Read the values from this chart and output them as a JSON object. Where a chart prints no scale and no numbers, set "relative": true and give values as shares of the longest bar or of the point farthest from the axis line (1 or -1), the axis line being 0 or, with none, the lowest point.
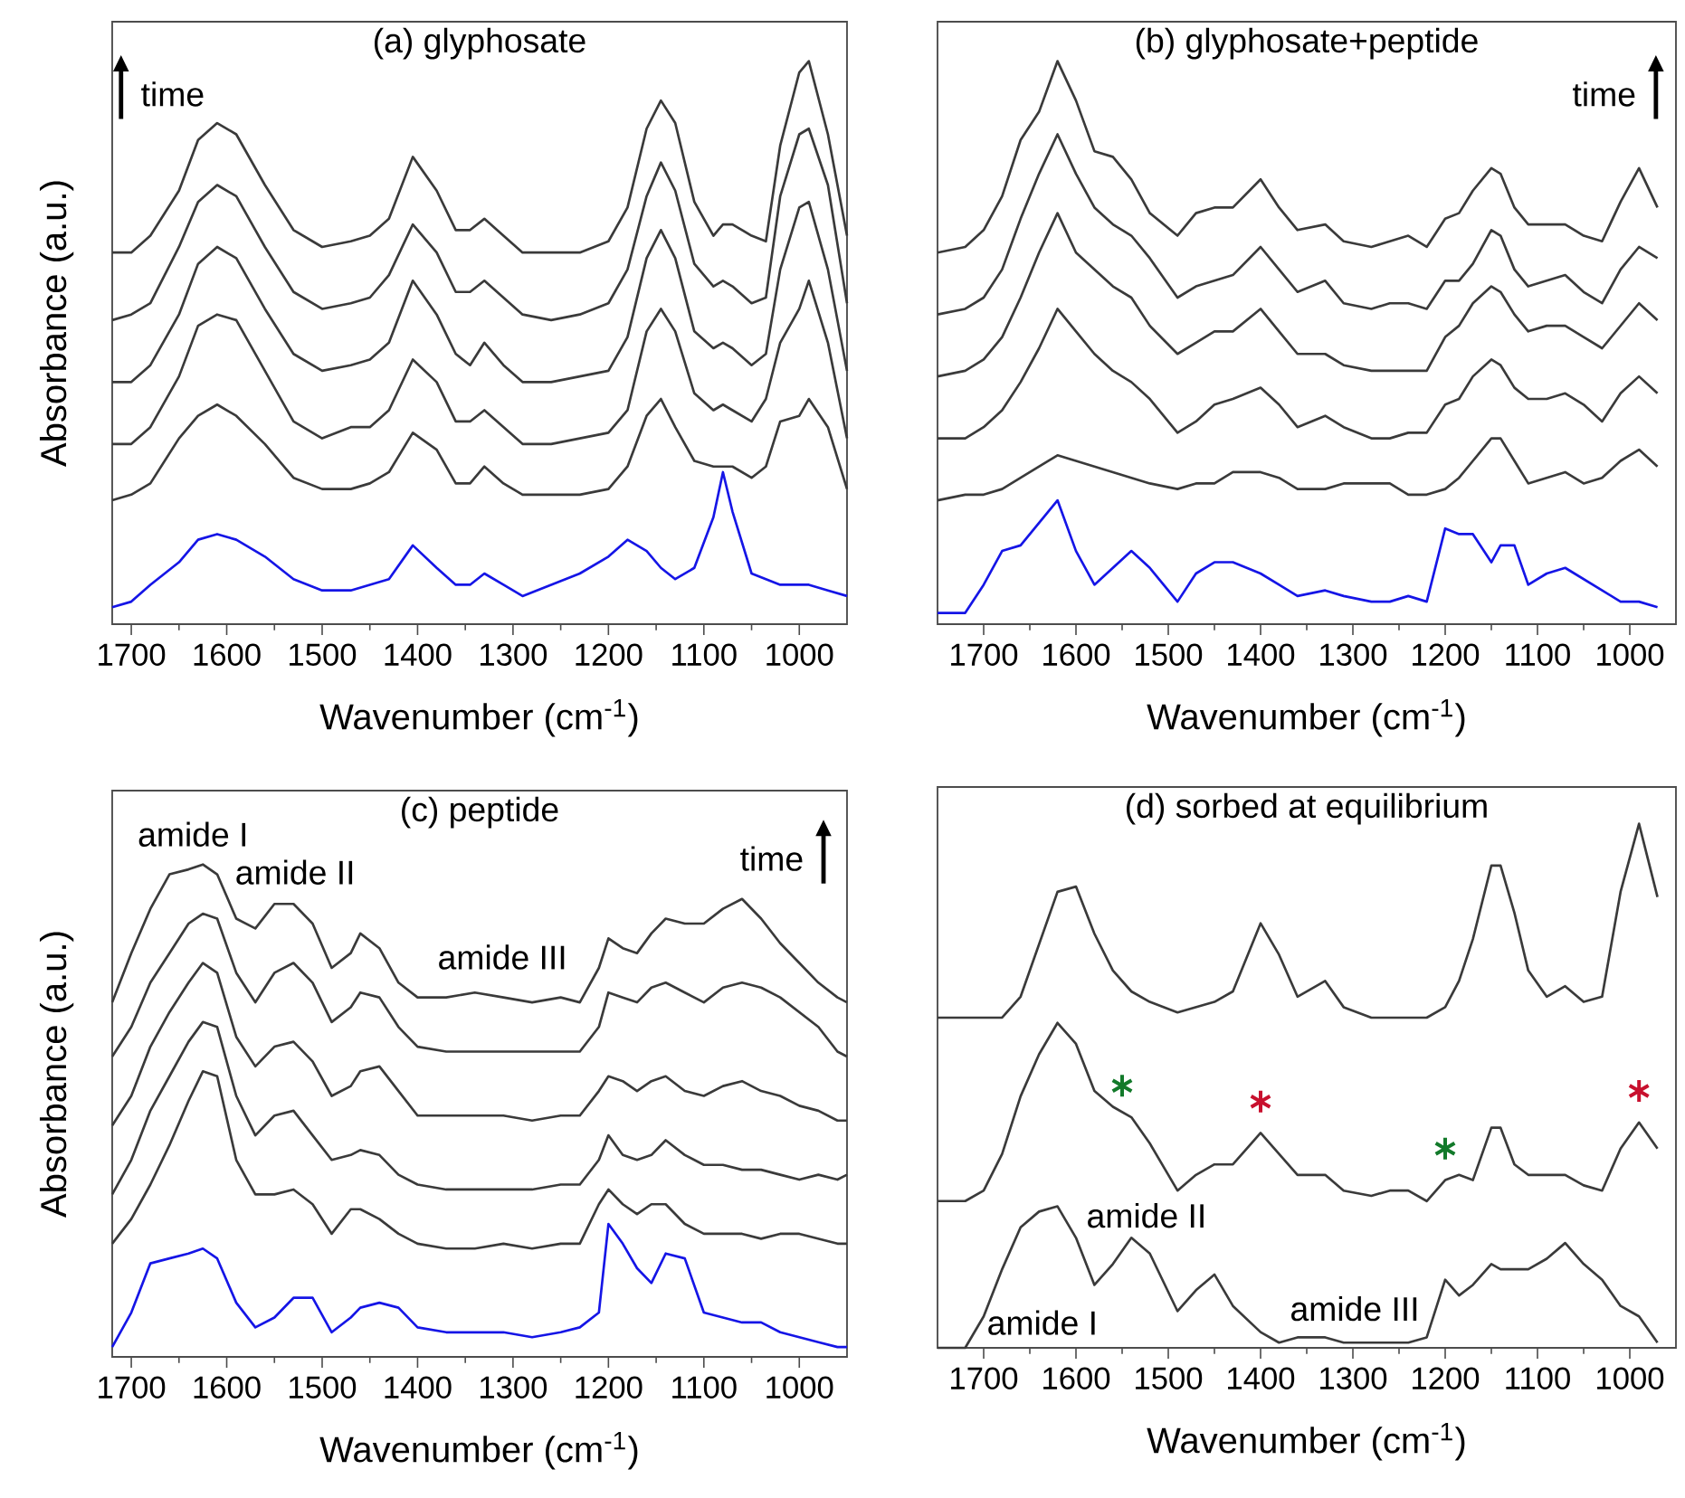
{
  "chart_data": [
    {
      "type": "line",
      "title": "(a) glyphosate",
      "xlabel": "Wavenumber (cm$^{-1}$)",
      "ylabel": "Absorbance (a.u.)",
      "relative": true,
      "xlim": [
        1720,
        950
      ],
      "xticks": [
        1700,
        {
          "value": 1650,
          "label": null
        },
        1600,
        {
          "value": 1550,
          "label": null
        },
        1500,
        {
          "value": 1450,
          "label": null
        },
        1400,
        {
          "value": 1350,
          "label": null
        },
        1300,
        {
          "value": 1250,
          "label": null
        },
        1200,
        {
          "value": 1150,
          "label": null
        },
        1100,
        {
          "value": 1050,
          "label": null
        },
        1000
      ],
      "x": [
        1720,
        1700,
        1680,
        1650,
        1630,
        1610,
        1590,
        1560,
        1530,
        1500,
        1470,
        1450,
        1430,
        1405,
        1380,
        1360,
        1345,
        1330,
        1310,
        1290,
        1260,
        1230,
        1200,
        1180,
        1160,
        1145,
        1130,
        1110,
        1090,
        1080,
        1070,
        1050,
        1035,
        1020,
        1000,
        990,
        970,
        950
      ],
      "series": [
        {
          "color": "#1515e6",
          "values": [
            0.03,
            0.04,
            0.07,
            0.11,
            0.15,
            0.16,
            0.15,
            0.12,
            0.08,
            0.06,
            0.06,
            0.07,
            0.08,
            0.14,
            0.1,
            0.07,
            0.07,
            0.09,
            0.07,
            0.05,
            0.07,
            0.09,
            0.12,
            0.15,
            0.13,
            0.1,
            0.08,
            0.1,
            0.19,
            0.27,
            0.2,
            0.09,
            0.08,
            0.07,
            0.07,
            0.07,
            0.06,
            0.05
          ]
        },
        {
          "color": "#3a3a3a",
          "values": [
            0.22,
            0.23,
            0.25,
            0.33,
            0.37,
            0.39,
            0.37,
            0.32,
            0.26,
            0.24,
            0.24,
            0.25,
            0.27,
            0.34,
            0.31,
            0.25,
            0.25,
            0.28,
            0.25,
            0.23,
            0.23,
            0.23,
            0.24,
            0.28,
            0.37,
            0.4,
            0.35,
            0.29,
            0.28,
            0.28,
            0.28,
            0.26,
            0.28,
            0.36,
            0.37,
            0.4,
            0.35,
            0.24
          ]
        },
        {
          "color": "#3a3a3a",
          "values": [
            0.32,
            0.32,
            0.35,
            0.44,
            0.53,
            0.55,
            0.54,
            0.45,
            0.36,
            0.33,
            0.35,
            0.35,
            0.38,
            0.47,
            0.43,
            0.36,
            0.36,
            0.38,
            0.35,
            0.32,
            0.32,
            0.33,
            0.34,
            0.38,
            0.52,
            0.56,
            0.52,
            0.41,
            0.38,
            0.39,
            0.38,
            0.36,
            0.4,
            0.5,
            0.56,
            0.61,
            0.5,
            0.33
          ]
        },
        {
          "color": "#3a3a3a",
          "values": [
            0.43,
            0.43,
            0.46,
            0.55,
            0.64,
            0.67,
            0.65,
            0.56,
            0.48,
            0.45,
            0.46,
            0.47,
            0.5,
            0.61,
            0.55,
            0.48,
            0.46,
            0.5,
            0.46,
            0.43,
            0.43,
            0.44,
            0.45,
            0.51,
            0.65,
            0.7,
            0.65,
            0.52,
            0.49,
            0.5,
            0.49,
            0.46,
            0.48,
            0.63,
            0.74,
            0.75,
            0.63,
            0.45
          ]
        },
        {
          "color": "#3a3a3a",
          "values": [
            0.54,
            0.55,
            0.57,
            0.67,
            0.75,
            0.78,
            0.76,
            0.67,
            0.59,
            0.56,
            0.57,
            0.58,
            0.62,
            0.71,
            0.66,
            0.59,
            0.59,
            0.61,
            0.58,
            0.55,
            0.54,
            0.55,
            0.57,
            0.63,
            0.76,
            0.82,
            0.77,
            0.64,
            0.6,
            0.61,
            0.6,
            0.57,
            0.58,
            0.76,
            0.87,
            0.88,
            0.78,
            0.57
          ]
        },
        {
          "color": "#3a3a3a",
          "values": [
            0.66,
            0.66,
            0.69,
            0.77,
            0.86,
            0.89,
            0.87,
            0.78,
            0.7,
            0.67,
            0.68,
            0.69,
            0.72,
            0.83,
            0.77,
            0.7,
            0.7,
            0.72,
            0.69,
            0.66,
            0.66,
            0.66,
            0.68,
            0.74,
            0.88,
            0.93,
            0.89,
            0.75,
            0.69,
            0.71,
            0.71,
            0.69,
            0.68,
            0.85,
            0.98,
            1.0,
            0.87,
            0.69
          ]
        }
      ],
      "annotations": [
        "time"
      ]
    },
    {
      "type": "line",
      "title": "(b) glyphosate+peptide",
      "xlabel": "Wavenumber (cm$^{-1}$)",
      "relative": true,
      "xlim": [
        1750,
        950
      ],
      "xticks": [
        1700,
        {
          "value": 1650,
          "label": null
        },
        1600,
        {
          "value": 1550,
          "label": null
        },
        1500,
        {
          "value": 1450,
          "label": null
        },
        1400,
        {
          "value": 1350,
          "label": null
        },
        1300,
        {
          "value": 1250,
          "label": null
        },
        1200,
        {
          "value": 1150,
          "label": null
        },
        1100,
        {
          "value": 1050,
          "label": null
        },
        1000
      ],
      "x": [
        1750,
        1720,
        1700,
        1680,
        1660,
        1640,
        1620,
        1600,
        1580,
        1560,
        1540,
        1520,
        1490,
        1470,
        1450,
        1430,
        1400,
        1380,
        1360,
        1330,
        1310,
        1280,
        1260,
        1240,
        1220,
        1200,
        1185,
        1170,
        1150,
        1140,
        1125,
        1110,
        1090,
        1070,
        1050,
        1030,
        1010,
        990,
        970
      ],
      "series": [
        {
          "color": "#1515e6",
          "values": [
            0.02,
            0.02,
            0.07,
            0.13,
            0.14,
            0.18,
            0.22,
            0.13,
            0.07,
            0.1,
            0.13,
            0.1,
            0.04,
            0.09,
            0.11,
            0.11,
            0.09,
            0.07,
            0.05,
            0.06,
            0.05,
            0.04,
            0.04,
            0.05,
            0.04,
            0.17,
            0.16,
            0.16,
            0.11,
            0.14,
            0.14,
            0.07,
            0.09,
            0.1,
            0.08,
            0.06,
            0.04,
            0.04,
            0.03
          ]
        },
        {
          "color": "#3a3a3a",
          "values": [
            0.22,
            0.23,
            0.23,
            0.24,
            0.26,
            0.28,
            0.3,
            0.29,
            0.28,
            0.27,
            0.26,
            0.25,
            0.24,
            0.25,
            0.25,
            0.27,
            0.27,
            0.26,
            0.24,
            0.24,
            0.25,
            0.25,
            0.25,
            0.23,
            0.23,
            0.24,
            0.26,
            0.29,
            0.33,
            0.33,
            0.29,
            0.25,
            0.26,
            0.27,
            0.25,
            0.26,
            0.29,
            0.31,
            0.28
          ]
        },
        {
          "color": "#3a3a3a",
          "values": [
            0.33,
            0.33,
            0.35,
            0.38,
            0.43,
            0.49,
            0.56,
            0.52,
            0.48,
            0.45,
            0.43,
            0.4,
            0.34,
            0.36,
            0.39,
            0.4,
            0.42,
            0.39,
            0.35,
            0.37,
            0.35,
            0.33,
            0.33,
            0.34,
            0.34,
            0.39,
            0.4,
            0.44,
            0.47,
            0.46,
            0.42,
            0.4,
            0.4,
            0.41,
            0.39,
            0.36,
            0.41,
            0.44,
            0.41
          ]
        },
        {
          "color": "#3a3a3a",
          "values": [
            0.44,
            0.45,
            0.47,
            0.51,
            0.58,
            0.66,
            0.73,
            0.66,
            0.63,
            0.6,
            0.58,
            0.53,
            0.48,
            0.5,
            0.52,
            0.52,
            0.56,
            0.52,
            0.48,
            0.48,
            0.46,
            0.45,
            0.45,
            0.45,
            0.45,
            0.51,
            0.53,
            0.57,
            0.6,
            0.59,
            0.55,
            0.52,
            0.53,
            0.53,
            0.51,
            0.49,
            0.53,
            0.57,
            0.54
          ]
        },
        {
          "color": "#3a3a3a",
          "values": [
            0.55,
            0.56,
            0.58,
            0.63,
            0.72,
            0.8,
            0.87,
            0.8,
            0.74,
            0.71,
            0.69,
            0.65,
            0.58,
            0.6,
            0.61,
            0.62,
            0.67,
            0.63,
            0.59,
            0.61,
            0.57,
            0.56,
            0.57,
            0.57,
            0.56,
            0.61,
            0.61,
            0.64,
            0.7,
            0.69,
            0.63,
            0.6,
            0.61,
            0.62,
            0.59,
            0.57,
            0.63,
            0.67,
            0.65
          ]
        },
        {
          "color": "#3a3a3a",
          "values": [
            0.66,
            0.67,
            0.7,
            0.76,
            0.86,
            0.91,
            1.0,
            0.93,
            0.84,
            0.83,
            0.79,
            0.73,
            0.69,
            0.73,
            0.74,
            0.74,
            0.79,
            0.74,
            0.7,
            0.71,
            0.68,
            0.67,
            0.68,
            0.69,
            0.67,
            0.72,
            0.73,
            0.77,
            0.81,
            0.8,
            0.74,
            0.71,
            0.71,
            0.71,
            0.69,
            0.68,
            0.75,
            0.81,
            0.74
          ]
        }
      ],
      "annotations": [
        "time"
      ]
    },
    {
      "type": "line",
      "title": "(c) peptide",
      "xlabel": "Wavenumber (cm$^{-1}$)",
      "ylabel": "Absorbance (a.u.)",
      "relative": true,
      "xlim": [
        1720,
        950
      ],
      "xticks": [
        1700,
        {
          "value": 1650,
          "label": null
        },
        1600,
        {
          "value": 1550,
          "label": null
        },
        1500,
        {
          "value": 1450,
          "label": null
        },
        1400,
        {
          "value": 1350,
          "label": null
        },
        1300,
        {
          "value": 1250,
          "label": null
        },
        1200,
        {
          "value": 1150,
          "label": null
        },
        1100,
        {
          "value": 1050,
          "label": null
        },
        1000
      ],
      "x": [
        1720,
        1700,
        1680,
        1660,
        1640,
        1625,
        1610,
        1590,
        1570,
        1550,
        1530,
        1510,
        1490,
        1470,
        1460,
        1440,
        1420,
        1400,
        1370,
        1340,
        1310,
        1280,
        1250,
        1230,
        1210,
        1200,
        1185,
        1170,
        1155,
        1140,
        1120,
        1100,
        1080,
        1060,
        1040,
        1020,
        1000,
        980,
        960,
        950
      ],
      "series": [
        {
          "color": "#1515e6",
          "values": [
            0.02,
            0.09,
            0.19,
            0.2,
            0.21,
            0.22,
            0.2,
            0.11,
            0.06,
            0.08,
            0.12,
            0.12,
            0.05,
            0.08,
            0.1,
            0.11,
            0.1,
            0.06,
            0.05,
            0.05,
            0.05,
            0.04,
            0.05,
            0.06,
            0.09,
            0.27,
            0.23,
            0.18,
            0.15,
            0.21,
            0.2,
            0.09,
            0.08,
            0.07,
            0.07,
            0.05,
            0.04,
            0.03,
            0.02,
            0.02
          ]
        },
        {
          "color": "#3a3a3a",
          "values": [
            0.23,
            0.28,
            0.35,
            0.43,
            0.52,
            0.58,
            0.57,
            0.4,
            0.33,
            0.33,
            0.34,
            0.31,
            0.25,
            0.3,
            0.3,
            0.28,
            0.25,
            0.23,
            0.22,
            0.22,
            0.23,
            0.22,
            0.23,
            0.23,
            0.31,
            0.34,
            0.31,
            0.29,
            0.31,
            0.31,
            0.27,
            0.25,
            0.25,
            0.25,
            0.24,
            0.25,
            0.25,
            0.24,
            0.23,
            0.23
          ]
        },
        {
          "color": "#3a3a3a",
          "values": [
            0.33,
            0.4,
            0.5,
            0.57,
            0.64,
            0.68,
            0.67,
            0.53,
            0.45,
            0.49,
            0.5,
            0.45,
            0.4,
            0.41,
            0.42,
            0.41,
            0.37,
            0.35,
            0.34,
            0.34,
            0.34,
            0.34,
            0.35,
            0.35,
            0.4,
            0.45,
            0.41,
            0.4,
            0.41,
            0.44,
            0.41,
            0.39,
            0.39,
            0.38,
            0.38,
            0.37,
            0.36,
            0.37,
            0.36,
            0.37
          ]
        },
        {
          "color": "#3a3a3a",
          "values": [
            0.47,
            0.53,
            0.63,
            0.7,
            0.76,
            0.8,
            0.78,
            0.65,
            0.59,
            0.63,
            0.64,
            0.6,
            0.53,
            0.55,
            0.58,
            0.59,
            0.54,
            0.49,
            0.49,
            0.49,
            0.49,
            0.48,
            0.49,
            0.49,
            0.54,
            0.57,
            0.56,
            0.54,
            0.56,
            0.57,
            0.54,
            0.53,
            0.55,
            0.56,
            0.54,
            0.53,
            0.51,
            0.5,
            0.48,
            0.48
          ]
        },
        {
          "color": "#3a3a3a",
          "values": [
            0.61,
            0.67,
            0.76,
            0.82,
            0.88,
            0.9,
            0.89,
            0.78,
            0.72,
            0.78,
            0.8,
            0.76,
            0.68,
            0.71,
            0.74,
            0.73,
            0.67,
            0.63,
            0.62,
            0.62,
            0.62,
            0.62,
            0.62,
            0.62,
            0.67,
            0.74,
            0.73,
            0.72,
            0.75,
            0.76,
            0.74,
            0.72,
            0.75,
            0.76,
            0.75,
            0.73,
            0.7,
            0.67,
            0.62,
            0.61
          ]
        },
        {
          "color": "#3a3a3a",
          "values": [
            0.72,
            0.82,
            0.91,
            0.98,
            0.99,
            1.0,
            0.98,
            0.89,
            0.87,
            0.92,
            0.92,
            0.88,
            0.79,
            0.82,
            0.86,
            0.83,
            0.76,
            0.73,
            0.73,
            0.74,
            0.73,
            0.72,
            0.73,
            0.72,
            0.79,
            0.85,
            0.83,
            0.82,
            0.86,
            0.89,
            0.88,
            0.88,
            0.91,
            0.93,
            0.89,
            0.84,
            0.8,
            0.76,
            0.73,
            0.72
          ]
        }
      ],
      "annotations": [
        "time",
        "amide I",
        "amide II",
        "amide III"
      ]
    },
    {
      "type": "line",
      "title": "(d) sorbed at equilibrium",
      "xlabel": "Wavenumber (cm$^{-1}$)",
      "relative": true,
      "xlim": [
        1750,
        950
      ],
      "xticks": [
        1700,
        {
          "value": 1650,
          "label": null
        },
        1600,
        {
          "value": 1550,
          "label": null
        },
        1500,
        {
          "value": 1450,
          "label": null
        },
        1400,
        {
          "value": 1350,
          "label": null
        },
        1300,
        {
          "value": 1250,
          "label": null
        },
        1200,
        {
          "value": 1150,
          "label": null
        },
        1100,
        {
          "value": 1050,
          "label": null
        },
        1000
      ],
      "x": [
        1750,
        1720,
        1700,
        1680,
        1660,
        1640,
        1620,
        1600,
        1580,
        1560,
        1540,
        1520,
        1490,
        1470,
        1450,
        1430,
        1400,
        1380,
        1360,
        1330,
        1310,
        1280,
        1260,
        1240,
        1220,
        1200,
        1185,
        1170,
        1150,
        1140,
        1125,
        1110,
        1090,
        1070,
        1050,
        1030,
        1010,
        990,
        970
      ],
      "series": [
        {
          "color": "#3a3a3a",
          "values": [
            0.0,
            0.0,
            0.06,
            0.15,
            0.23,
            0.26,
            0.27,
            0.21,
            0.12,
            0.16,
            0.21,
            0.18,
            0.07,
            0.11,
            0.14,
            0.08,
            0.03,
            0.01,
            0.02,
            0.02,
            0.01,
            0.01,
            0.01,
            0.01,
            0.02,
            0.13,
            0.1,
            0.12,
            0.16,
            0.15,
            0.15,
            0.15,
            0.17,
            0.2,
            0.16,
            0.13,
            0.08,
            0.06,
            0.01
          ]
        },
        {
          "color": "#3a3a3a",
          "values": [
            0.28,
            0.28,
            0.3,
            0.37,
            0.48,
            0.56,
            0.62,
            0.58,
            0.49,
            0.46,
            0.44,
            0.39,
            0.3,
            0.33,
            0.35,
            0.35,
            0.41,
            0.37,
            0.33,
            0.33,
            0.3,
            0.29,
            0.3,
            0.3,
            0.28,
            0.32,
            0.33,
            0.32,
            0.42,
            0.42,
            0.35,
            0.33,
            0.33,
            0.33,
            0.31,
            0.3,
            0.38,
            0.43,
            0.38
          ]
        },
        {
          "color": "#3a3a3a",
          "values": [
            0.63,
            0.63,
            0.63,
            0.63,
            0.67,
            0.77,
            0.87,
            0.88,
            0.79,
            0.72,
            0.68,
            0.66,
            0.64,
            0.65,
            0.66,
            0.68,
            0.81,
            0.75,
            0.67,
            0.7,
            0.65,
            0.63,
            0.63,
            0.63,
            0.63,
            0.65,
            0.7,
            0.78,
            0.92,
            0.92,
            0.83,
            0.72,
            0.67,
            0.69,
            0.66,
            0.67,
            0.87,
            1.0,
            0.86
          ]
        },
        {
          "type": "scatter",
          "marker": "cross",
          "color": "#127a2a",
          "x": [
            1550,
            1200
          ],
          "values": [
            0.5,
            0.38
          ]
        },
        {
          "type": "scatter",
          "marker": "cross",
          "color": "#c8102e",
          "x": [
            1400,
            990
          ],
          "values": [
            0.47,
            0.49
          ]
        }
      ],
      "annotations": [
        "amide II",
        "amide III",
        "amide I"
      ]
    }
  ]
}
